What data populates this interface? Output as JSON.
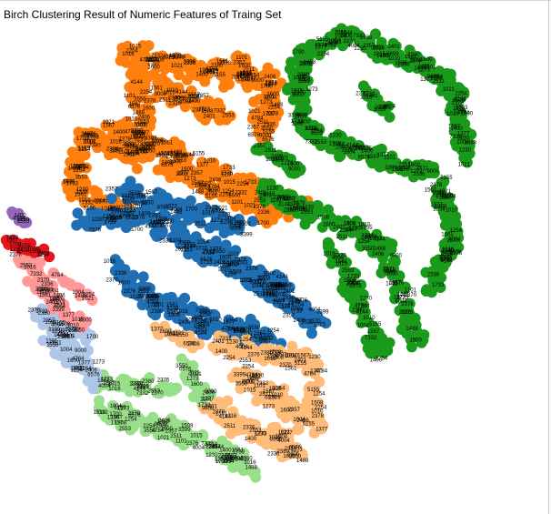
{
  "chart_data": {
    "type": "scatter",
    "title": "Birch Clustering Result of Numeric Features of Traing Set",
    "colors": {
      "orange": "#ff7f0e",
      "green": "#1a9a1a",
      "blue": "#1f6fb4",
      "light_orange": "#ffbb78",
      "light_green": "#98df8a",
      "light_blue": "#aec7e8",
      "pink": "#ff9896",
      "red": "#e8141b",
      "purple": "#9467bd"
    },
    "point_labels": [
      "1015",
      "3399",
      "2336",
      "2357",
      "9000",
      "1273",
      "2511",
      "1600",
      "1101",
      "6576",
      "2406",
      "1377",
      "3550",
      "1021",
      "1488",
      "1004",
      "1254",
      "4784",
      "2254",
      "2378",
      "5155",
      "1700",
      "1010",
      "1508",
      "1567",
      "7332",
      "1230",
      "2553",
      "4144",
      "1400",
      "2380",
      "2401",
      "1016",
      "1561",
      "1733",
      "2376",
      "4004",
      "2370"
    ]
  }
}
